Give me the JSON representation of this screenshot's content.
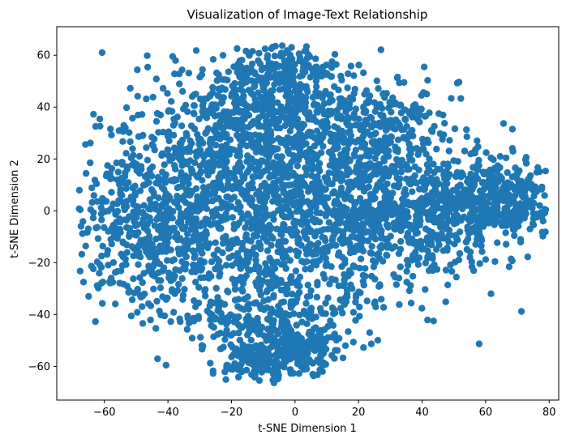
{
  "chart_data": {
    "type": "scatter",
    "title": "Visualization of Image-Text Relationship",
    "xlabel": "t-SNE Dimension 1",
    "ylabel": "t-SNE Dimension 2",
    "xlim": [
      -75,
      83
    ],
    "ylim": [
      -73,
      71
    ],
    "xticks": [
      -60,
      -40,
      -20,
      0,
      20,
      40,
      60,
      80
    ],
    "yticks": [
      -60,
      -40,
      -20,
      0,
      20,
      40,
      60
    ],
    "grid": false,
    "legend": "none",
    "marker_color": "#1f77b4",
    "series": [
      {
        "clusters": [
          {
            "cx": -5,
            "cy": 5,
            "sx": 28,
            "sy": 22,
            "n": 1700
          },
          {
            "cx": -10,
            "cy": 40,
            "sx": 15,
            "sy": 10,
            "n": 350
          },
          {
            "cx": -3,
            "cy": 55,
            "sx": 7,
            "sy": 5,
            "n": 120
          },
          {
            "cx": 62,
            "cy": 5,
            "sx": 10,
            "sy": 8,
            "n": 420
          },
          {
            "cx": 35,
            "cy": -5,
            "sx": 14,
            "sy": 12,
            "n": 350
          },
          {
            "cx": -45,
            "cy": -5,
            "sx": 12,
            "sy": 16,
            "n": 400
          },
          {
            "cx": -12,
            "cy": -58,
            "sx": 5,
            "sy": 4,
            "n": 170
          },
          {
            "cx": 3,
            "cy": -54,
            "sx": 5,
            "sy": 4,
            "n": 150
          },
          {
            "cx": -8,
            "cy": -40,
            "sx": 14,
            "sy": 8,
            "n": 250
          },
          {
            "cx": 25,
            "cy": 30,
            "sx": 10,
            "sy": 10,
            "n": 180
          }
        ],
        "extent": {
          "x": [
            -68,
            79
          ],
          "y": [
            -67,
            64
          ]
        }
      }
    ]
  }
}
